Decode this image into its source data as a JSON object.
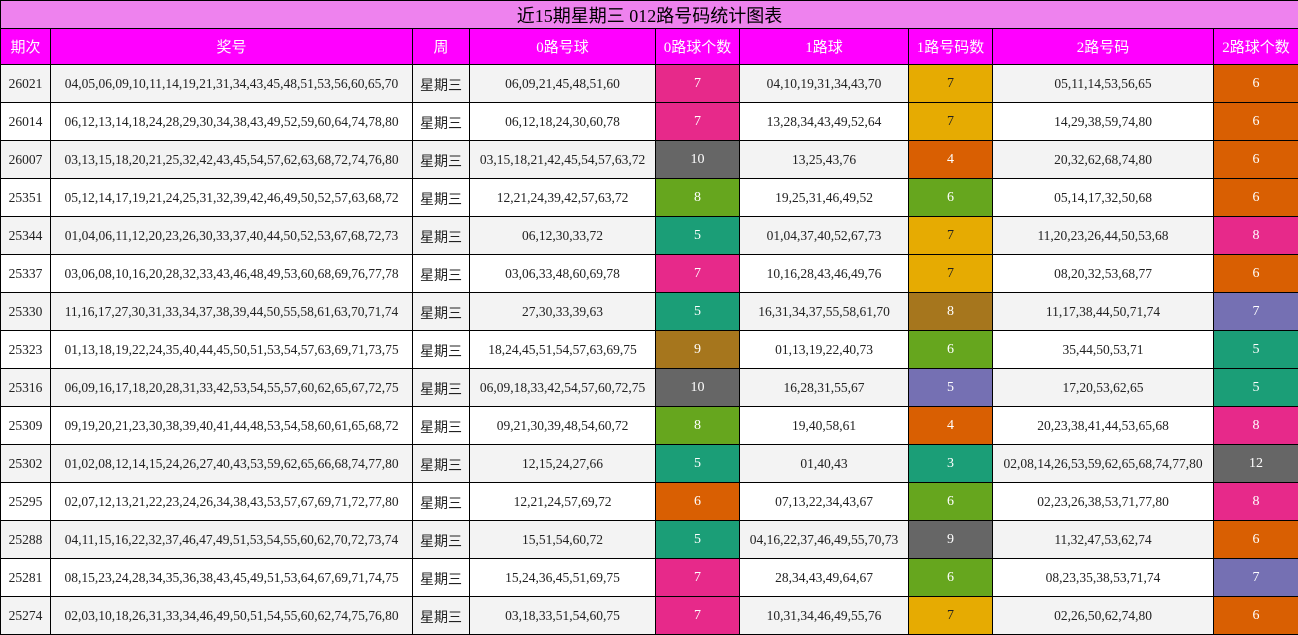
{
  "title": "近15期星期三 012路号码统计图表",
  "headers": [
    "期次",
    "奖号",
    "周",
    "0路号球",
    "0路球个数",
    "1路球",
    "1路号码数",
    "2路号码",
    "2路球个数"
  ],
  "rows": [
    {
      "issue": "26021",
      "numbers": "04,05,06,09,10,11,14,19,21,31,34,43,45,48,51,53,56,60,65,70",
      "week": "星期三",
      "r0": "06,09,21,45,48,51,60",
      "c0": "7",
      "c0color": "#e7298a",
      "r1": "04,10,19,31,34,43,70",
      "c1": "7",
      "c1color": "#e6ab02",
      "r2": "05,11,14,53,56,65",
      "c2": "6",
      "c2color": "#d95f02"
    },
    {
      "issue": "26014",
      "numbers": "06,12,13,14,18,24,28,29,30,34,38,43,49,52,59,60,64,74,78,80",
      "week": "星期三",
      "r0": "06,12,18,24,30,60,78",
      "c0": "7",
      "c0color": "#e7298a",
      "r1": "13,28,34,43,49,52,64",
      "c1": "7",
      "c1color": "#e6ab02",
      "r2": "14,29,38,59,74,80",
      "c2": "6",
      "c2color": "#d95f02"
    },
    {
      "issue": "26007",
      "numbers": "03,13,15,18,20,21,25,32,42,43,45,54,57,62,63,68,72,74,76,80",
      "week": "星期三",
      "r0": "03,15,18,21,42,45,54,57,63,72",
      "c0": "10",
      "c0color": "#666666",
      "r1": "13,25,43,76",
      "c1": "4",
      "c1color": "#d95f02",
      "r2": "20,32,62,68,74,80",
      "c2": "6",
      "c2color": "#d95f02"
    },
    {
      "issue": "25351",
      "numbers": "05,12,14,17,19,21,24,25,31,32,39,42,46,49,50,52,57,63,68,72",
      "week": "星期三",
      "r0": "12,21,24,39,42,57,63,72",
      "c0": "8",
      "c0color": "#66a61e",
      "r1": "19,25,31,46,49,52",
      "c1": "6",
      "c1color": "#66a61e",
      "r2": "05,14,17,32,50,68",
      "c2": "6",
      "c2color": "#d95f02"
    },
    {
      "issue": "25344",
      "numbers": "01,04,06,11,12,20,23,26,30,33,37,40,44,50,52,53,67,68,72,73",
      "week": "星期三",
      "r0": "06,12,30,33,72",
      "c0": "5",
      "c0color": "#1b9e77",
      "r1": "01,04,37,40,52,67,73",
      "c1": "7",
      "c1color": "#e6ab02",
      "r2": "11,20,23,26,44,50,53,68",
      "c2": "8",
      "c2color": "#e7298a"
    },
    {
      "issue": "25337",
      "numbers": "03,06,08,10,16,20,28,32,33,43,46,48,49,53,60,68,69,76,77,78",
      "week": "星期三",
      "r0": "03,06,33,48,60,69,78",
      "c0": "7",
      "c0color": "#e7298a",
      "r1": "10,16,28,43,46,49,76",
      "c1": "7",
      "c1color": "#e6ab02",
      "r2": "08,20,32,53,68,77",
      "c2": "6",
      "c2color": "#d95f02"
    },
    {
      "issue": "25330",
      "numbers": "11,16,17,27,30,31,33,34,37,38,39,44,50,55,58,61,63,70,71,74",
      "week": "星期三",
      "r0": "27,30,33,39,63",
      "c0": "5",
      "c0color": "#1b9e77",
      "r1": "16,31,34,37,55,58,61,70",
      "c1": "8",
      "c1color": "#a6761d",
      "r2": "11,17,38,44,50,71,74",
      "c2": "7",
      "c2color": "#7570b3"
    },
    {
      "issue": "25323",
      "numbers": "01,13,18,19,22,24,35,40,44,45,50,51,53,54,57,63,69,71,73,75",
      "week": "星期三",
      "r0": "18,24,45,51,54,57,63,69,75",
      "c0": "9",
      "c0color": "#a6761d",
      "r1": "01,13,19,22,40,73",
      "c1": "6",
      "c1color": "#66a61e",
      "r2": "35,44,50,53,71",
      "c2": "5",
      "c2color": "#1b9e77"
    },
    {
      "issue": "25316",
      "numbers": "06,09,16,17,18,20,28,31,33,42,53,54,55,57,60,62,65,67,72,75",
      "week": "星期三",
      "r0": "06,09,18,33,42,54,57,60,72,75",
      "c0": "10",
      "c0color": "#666666",
      "r1": "16,28,31,55,67",
      "c1": "5",
      "c1color": "#7570b3",
      "r2": "17,20,53,62,65",
      "c2": "5",
      "c2color": "#1b9e77"
    },
    {
      "issue": "25309",
      "numbers": "09,19,20,21,23,30,38,39,40,41,44,48,53,54,58,60,61,65,68,72",
      "week": "星期三",
      "r0": "09,21,30,39,48,54,60,72",
      "c0": "8",
      "c0color": "#66a61e",
      "r1": "19,40,58,61",
      "c1": "4",
      "c1color": "#d95f02",
      "r2": "20,23,38,41,44,53,65,68",
      "c2": "8",
      "c2color": "#e7298a"
    },
    {
      "issue": "25302",
      "numbers": "01,02,08,12,14,15,24,26,27,40,43,53,59,62,65,66,68,74,77,80",
      "week": "星期三",
      "r0": "12,15,24,27,66",
      "c0": "5",
      "c0color": "#1b9e77",
      "r1": "01,40,43",
      "c1": "3",
      "c1color": "#1b9e77",
      "r2": "02,08,14,26,53,59,62,65,68,74,77,80",
      "c2": "12",
      "c2color": "#666666"
    },
    {
      "issue": "25295",
      "numbers": "02,07,12,13,21,22,23,24,26,34,38,43,53,57,67,69,71,72,77,80",
      "week": "星期三",
      "r0": "12,21,24,57,69,72",
      "c0": "6",
      "c0color": "#d95f02",
      "r1": "07,13,22,34,43,67",
      "c1": "6",
      "c1color": "#66a61e",
      "r2": "02,23,26,38,53,71,77,80",
      "c2": "8",
      "c2color": "#e7298a"
    },
    {
      "issue": "25288",
      "numbers": "04,11,15,16,22,32,37,46,47,49,51,53,54,55,60,62,70,72,73,74",
      "week": "星期三",
      "r0": "15,51,54,60,72",
      "c0": "5",
      "c0color": "#1b9e77",
      "r1": "04,16,22,37,46,49,55,70,73",
      "c1": "9",
      "c1color": "#666666",
      "r2": "11,32,47,53,62,74",
      "c2": "6",
      "c2color": "#d95f02"
    },
    {
      "issue": "25281",
      "numbers": "08,15,23,24,28,34,35,36,38,43,45,49,51,53,64,67,69,71,74,75",
      "week": "星期三",
      "r0": "15,24,36,45,51,69,75",
      "c0": "7",
      "c0color": "#e7298a",
      "r1": "28,34,43,49,64,67",
      "c1": "6",
      "c1color": "#66a61e",
      "r2": "08,23,35,38,53,71,74",
      "c2": "7",
      "c2color": "#7570b3"
    },
    {
      "issue": "25274",
      "numbers": "02,03,10,18,26,31,33,34,46,49,50,51,54,55,60,62,74,75,76,80",
      "week": "星期三",
      "r0": "03,18,33,51,54,60,75",
      "c0": "7",
      "c0color": "#e7298a",
      "r1": "10,31,34,46,49,55,76",
      "c1": "7",
      "c1color": "#e6ab02",
      "r2": "02,26,50,62,74,80",
      "c2": "6",
      "c2color": "#d95f02"
    }
  ]
}
